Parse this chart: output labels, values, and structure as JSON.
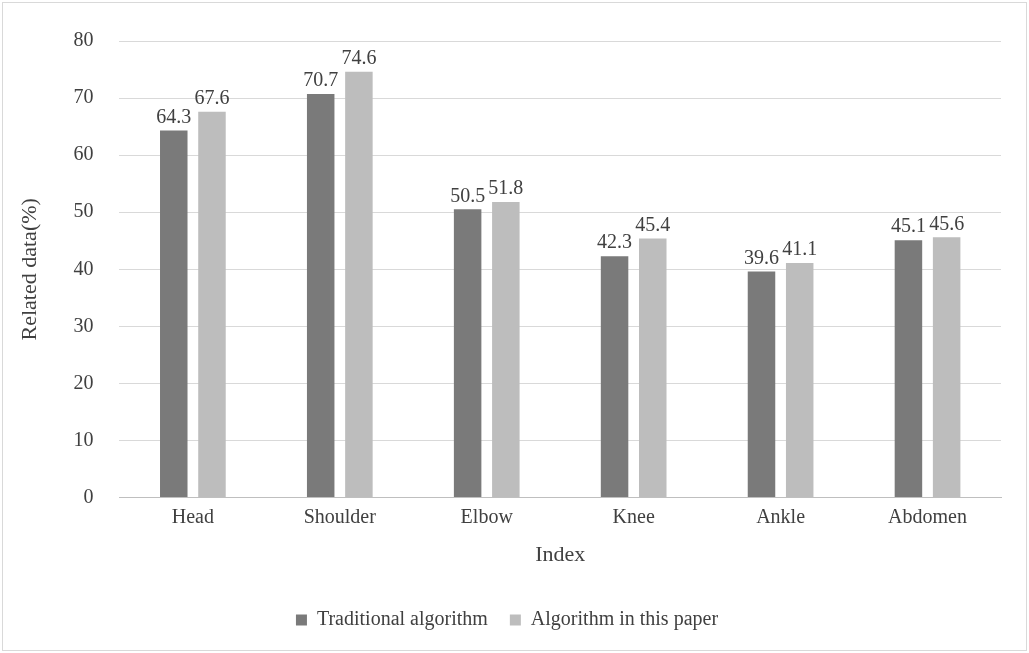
{
  "chart_data": {
    "type": "bar",
    "xlabel": "Index",
    "ylabel": "Related data(%)",
    "categories": [
      "Head",
      "Shoulder",
      "Elbow",
      "Knee",
      "Ankle",
      "Abdomen"
    ],
    "series": [
      {
        "name": "Traditional algorithm",
        "color": "#7a7a7a",
        "values": [
          64.3,
          70.7,
          50.5,
          42.3,
          39.6,
          45.1
        ]
      },
      {
        "name": "Algorithm in this paper",
        "color": "#bdbdbd",
        "values": [
          67.6,
          74.6,
          51.8,
          45.4,
          41.1,
          45.6
        ]
      }
    ],
    "ylim": [
      0,
      80
    ],
    "yticks": [
      0,
      10,
      20,
      30,
      40,
      50,
      60,
      70,
      80
    ],
    "grid": "y",
    "legend": "bottom",
    "data_labels": true
  }
}
